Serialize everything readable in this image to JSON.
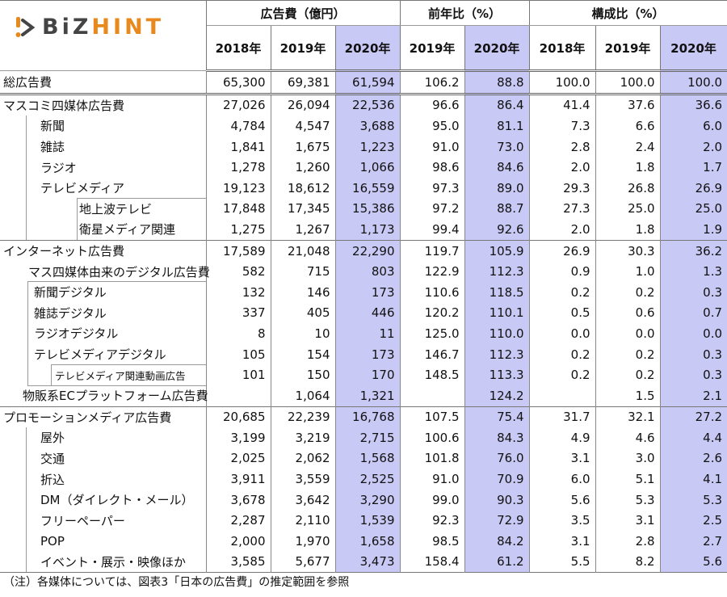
{
  "logo": {
    "part1": "BiZ",
    "part2": "HINT"
  },
  "header": {
    "groups": [
      "広告費（億円）",
      "前年比（%）",
      "構成比（%）"
    ],
    "years": [
      "2018年",
      "2019年",
      "2020年",
      "2019年",
      "2020年",
      "2018年",
      "2019年",
      "2020年"
    ]
  },
  "highlight_color": "#c9c9f5",
  "rows": [
    {
      "label": "総広告費",
      "values": [
        "65,300",
        "69,381",
        "61,594",
        "106.2",
        "88.8",
        "100.0",
        "100.0",
        "100.0"
      ]
    },
    {
      "label": "マスコミ四媒体広告費",
      "values": [
        "27,026",
        "26,094",
        "22,536",
        "96.6",
        "86.4",
        "41.4",
        "37.6",
        "36.6"
      ]
    },
    {
      "label": "新聞",
      "values": [
        "4,784",
        "4,547",
        "3,688",
        "95.0",
        "81.1",
        "7.3",
        "6.6",
        "6.0"
      ]
    },
    {
      "label": "雑誌",
      "values": [
        "1,841",
        "1,675",
        "1,223",
        "91.0",
        "73.0",
        "2.8",
        "2.4",
        "2.0"
      ]
    },
    {
      "label": "ラジオ",
      "values": [
        "1,278",
        "1,260",
        "1,066",
        "98.6",
        "84.6",
        "2.0",
        "1.8",
        "1.7"
      ]
    },
    {
      "label": "テレビメディア",
      "values": [
        "19,123",
        "18,612",
        "16,559",
        "97.3",
        "89.0",
        "29.3",
        "26.8",
        "26.9"
      ]
    },
    {
      "label": "地上波テレビ",
      "values": [
        "17,848",
        "17,345",
        "15,386",
        "97.2",
        "88.7",
        "27.3",
        "25.0",
        "25.0"
      ]
    },
    {
      "label": "衛星メディア関連",
      "values": [
        "1,275",
        "1,267",
        "1,173",
        "99.4",
        "92.6",
        "2.0",
        "1.8",
        "1.9"
      ]
    },
    {
      "label": "インターネット広告費",
      "values": [
        "17,589",
        "21,048",
        "22,290",
        "119.7",
        "105.9",
        "26.9",
        "30.3",
        "36.2"
      ]
    },
    {
      "label": "マス四媒体由来のデジタル広告費",
      "values": [
        "582",
        "715",
        "803",
        "122.9",
        "112.3",
        "0.9",
        "1.0",
        "1.3"
      ]
    },
    {
      "label": "新聞デジタル",
      "values": [
        "132",
        "146",
        "173",
        "110.6",
        "118.5",
        "0.2",
        "0.2",
        "0.3"
      ]
    },
    {
      "label": "雑誌デジタル",
      "values": [
        "337",
        "405",
        "446",
        "120.2",
        "110.1",
        "0.5",
        "0.6",
        "0.7"
      ]
    },
    {
      "label": "ラジオデジタル",
      "values": [
        "8",
        "10",
        "11",
        "125.0",
        "110.0",
        "0.0",
        "0.0",
        "0.0"
      ]
    },
    {
      "label": "テレビメディアデジタル",
      "values": [
        "105",
        "154",
        "173",
        "146.7",
        "112.3",
        "0.2",
        "0.2",
        "0.3"
      ]
    },
    {
      "label": "テレビメディア関連動画広告",
      "values": [
        "101",
        "150",
        "170",
        "148.5",
        "113.3",
        "0.2",
        "0.2",
        "0.3"
      ]
    },
    {
      "label": "物販系ECプラットフォーム広告費",
      "values": [
        "",
        "1,064",
        "1,321",
        "",
        "124.2",
        "",
        "1.5",
        "2.1"
      ]
    },
    {
      "label": "プロモーションメディア広告費",
      "values": [
        "20,685",
        "22,239",
        "16,768",
        "107.5",
        "75.4",
        "31.7",
        "32.1",
        "27.2"
      ]
    },
    {
      "label": "屋外",
      "values": [
        "3,199",
        "3,219",
        "2,715",
        "100.6",
        "84.3",
        "4.9",
        "4.6",
        "4.4"
      ]
    },
    {
      "label": "交通",
      "values": [
        "2,025",
        "2,062",
        "1,568",
        "101.8",
        "76.0",
        "3.1",
        "3.0",
        "2.6"
      ]
    },
    {
      "label": "折込",
      "values": [
        "3,911",
        "3,559",
        "2,525",
        "91.0",
        "70.9",
        "6.0",
        "5.1",
        "4.1"
      ]
    },
    {
      "label": "DM（ダイレクト・メール）",
      "values": [
        "3,678",
        "3,642",
        "3,290",
        "99.0",
        "90.3",
        "5.6",
        "5.3",
        "5.3"
      ]
    },
    {
      "label": "フリーペーパー",
      "values": [
        "2,287",
        "2,110",
        "1,539",
        "92.3",
        "72.9",
        "3.5",
        "3.1",
        "2.5"
      ]
    },
    {
      "label": "POP",
      "values": [
        "2,000",
        "1,970",
        "1,658",
        "98.5",
        "84.2",
        "3.1",
        "2.8",
        "2.7"
      ]
    },
    {
      "label": "イベント・展示・映像ほか",
      "values": [
        "3,585",
        "5,677",
        "3,473",
        "158.4",
        "61.2",
        "5.5",
        "8.2",
        "5.6"
      ]
    }
  ],
  "footnote": "（注）各媒体については、図表3「日本の広告費」の推定範囲を参照"
}
